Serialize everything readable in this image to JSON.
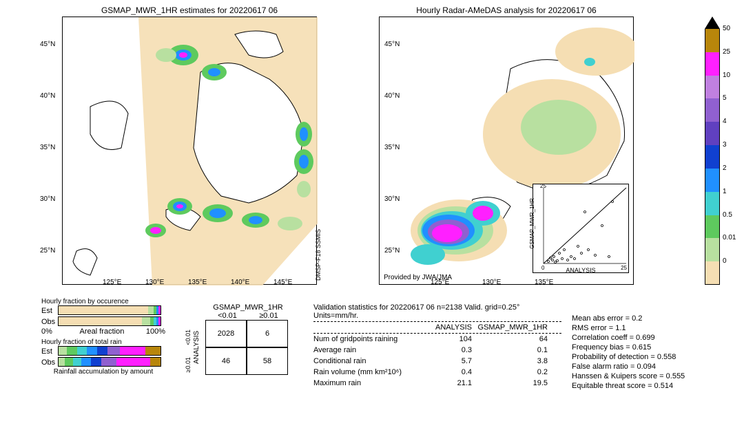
{
  "left_map": {
    "title": "GSMAP_MWR_1HR estimates for 20220617 06",
    "xticks": [
      "125°E",
      "130°E",
      "135°E",
      "140°E",
      "145°E"
    ],
    "yticks": [
      "25°N",
      "30°N",
      "35°N",
      "40°N",
      "45°N"
    ],
    "satellite_label": "DMSP-F18\nSSMIS",
    "swath_color": "#f5deb3"
  },
  "right_map": {
    "title": "Hourly Radar-AMeDAS analysis for 20220617 06",
    "xticks": [
      "125°E",
      "130°E",
      "135°E"
    ],
    "yticks": [
      "25°N",
      "30°N",
      "35°N",
      "40°N",
      "45°N"
    ],
    "provider": "Provided by JWA/JMA"
  },
  "scatter": {
    "xlabel": "ANALYSIS",
    "ylabel": "GSMAP_MWR_1HR",
    "lim": [
      0,
      25
    ],
    "ticks": [
      0,
      5,
      10,
      15,
      20,
      25
    ]
  },
  "colorbar": {
    "ticks": [
      "0",
      "0.01",
      "0.5",
      "1",
      "2",
      "3",
      "4",
      "5",
      "10",
      "25",
      "50"
    ],
    "colors": [
      "#ffffff",
      "#f5deb3",
      "#b8e0a0",
      "#5eca5e",
      "#40d0d0",
      "#2090ff",
      "#1040d0",
      "#6040c0",
      "#9060d0",
      "#c080e0",
      "#ff20ff",
      "#b8860b"
    ]
  },
  "fractions": {
    "occurrence_title": "Hourly fraction by occurence",
    "total_rain_title": "Hourly fraction of total rain",
    "accum_title": "Rainfall accumulation by amount",
    "est_label": "Est",
    "obs_label": "Obs",
    "areal_label": "Areal fraction",
    "pct0": "0%",
    "pct100": "100%",
    "occ_est_colors": [
      "#f5deb3",
      "#b8e0a0",
      "#5eca5e",
      "#2090ff",
      "#ff20ff"
    ],
    "occ_est_widths": [
      88,
      5,
      3,
      2,
      2
    ],
    "occ_obs_colors": [
      "#f5deb3",
      "#b8e0a0",
      "#5eca5e",
      "#40d0d0",
      "#2090ff",
      "#ff20ff"
    ],
    "occ_obs_widths": [
      82,
      8,
      3,
      3,
      2,
      2
    ],
    "tot_est_colors": [
      "#b8e0a0",
      "#5eca5e",
      "#40d0d0",
      "#2090ff",
      "#1040d0",
      "#9060d0",
      "#ff20ff",
      "#b8860b"
    ],
    "tot_est_widths": [
      8,
      10,
      10,
      10,
      10,
      12,
      25,
      15
    ],
    "tot_obs_colors": [
      "#b8e0a0",
      "#5eca5e",
      "#40d0d0",
      "#2090ff",
      "#1040d0",
      "#9060d0",
      "#ff20ff",
      "#b8860b"
    ],
    "tot_obs_widths": [
      6,
      8,
      8,
      10,
      10,
      15,
      33,
      10
    ]
  },
  "contingency": {
    "title": "GSMAP_MWR_1HR",
    "col1": "<0.01",
    "col2": "≥0.01",
    "row_label": "ANALYSIS",
    "cells": [
      "2028",
      "6",
      "46",
      "58"
    ]
  },
  "validation": {
    "header": "Validation statistics for 20220617 06  n=2138 Valid. grid=0.25° Units=mm/hr.",
    "col1": "ANALYSIS",
    "col2": "GSMAP_MWR_1HR",
    "rows": [
      {
        "label": "Num of gridpoints raining",
        "a": "104",
        "g": "64"
      },
      {
        "label": "Average rain",
        "a": "0.3",
        "g": "0.1"
      },
      {
        "label": "Conditional rain",
        "a": "5.7",
        "g": "3.8"
      },
      {
        "label": "Rain volume (mm km²10⁶)",
        "a": "0.4",
        "g": "0.2"
      },
      {
        "label": "Maximum rain",
        "a": "21.1",
        "g": "19.5"
      }
    ],
    "right_stats": [
      "Mean abs error =    0.2",
      "RMS error =    1.1",
      "Correlation coeff =  0.699",
      "Frequency bias =  0.615",
      "Probability of detection =  0.558",
      "False alarm ratio =  0.094",
      "Hanssen & Kuipers score =  0.555",
      "Equitable threat score =  0.514"
    ]
  }
}
